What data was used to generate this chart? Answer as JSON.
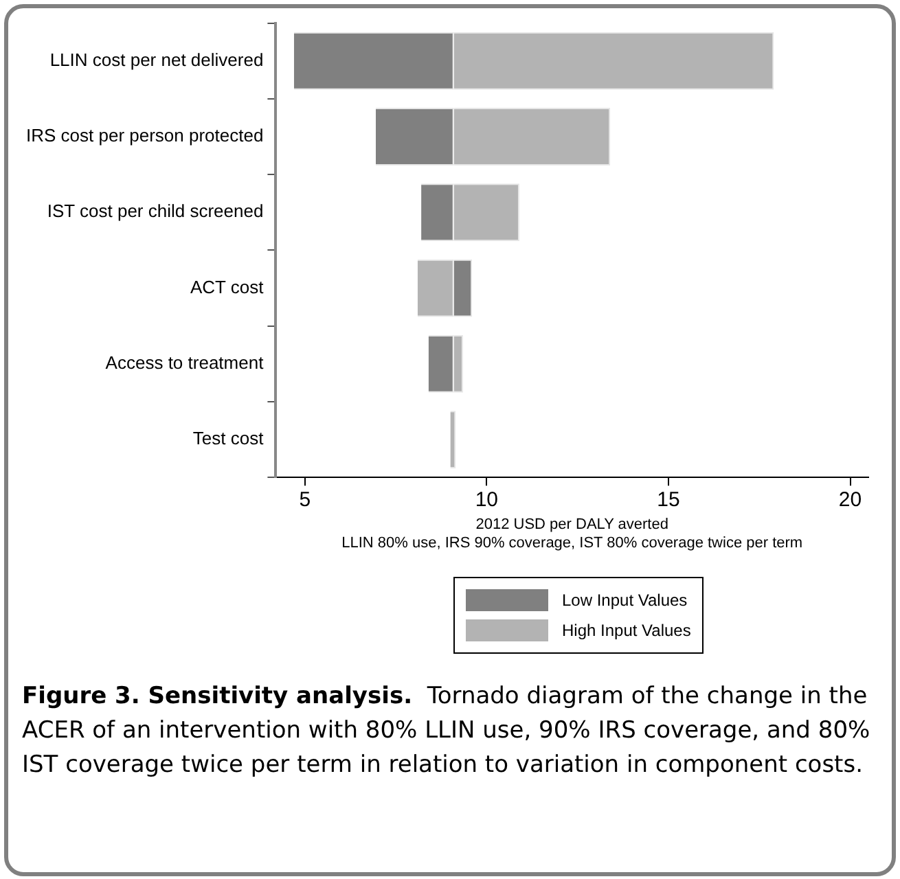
{
  "chart_data": {
    "type": "bar",
    "orientation": "horizontal",
    "title": "Figure 3. Sensitivity analysis.",
    "xlabel": "2012 USD per DALY averted",
    "annotations": [
      "LLIN 80% use, IRS 90% coverage, IST 80% coverage twice per term",
      "Tornado diagram of the change in the ACER of an intervention with 80% LLIN use, 90% IRS coverage, and 80% IST coverage twice per term in relation to variation in component costs."
    ],
    "categories": [
      "LLIN cost per net delivered",
      "IRS cost per person protected",
      "IST cost per child screened",
      "ACT cost",
      "Access to treatment",
      "Test cost"
    ],
    "series": [
      {
        "name": "Low Input Values",
        "color": "#808080",
        "base": [
          4.7,
          6.95,
          8.2,
          9.1,
          8.4,
          null
        ],
        "values": [
          4.4,
          2.15,
          0.9,
          0.5,
          0.7,
          null
        ]
      },
      {
        "name": "High Input Values",
        "color": "#b3b3b3",
        "base": [
          9.1,
          9.1,
          9.1,
          8.1,
          9.1,
          9.0
        ],
        "values": [
          8.8,
          4.3,
          1.8,
          1.0,
          0.25,
          0.15
        ]
      }
    ],
    "xlim": [
      4.2,
      20.5
    ],
    "xticks": [
      5,
      10,
      15,
      20
    ],
    "grid": false,
    "legend": "bottom"
  }
}
